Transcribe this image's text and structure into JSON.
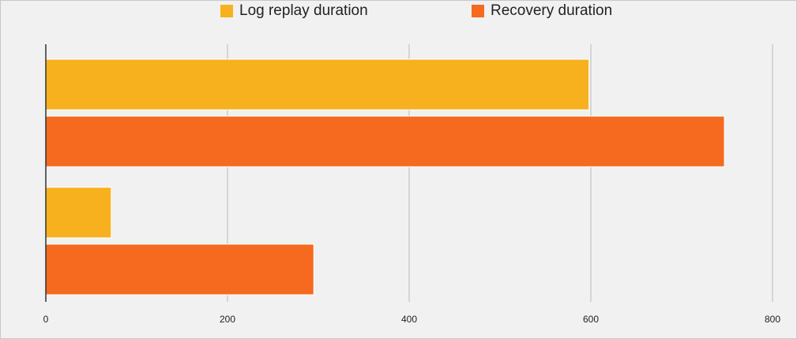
{
  "chart_data": {
    "type": "bar",
    "orientation": "horizontal",
    "categories": [
      "",
      ""
    ],
    "series": [
      {
        "name": "Log replay duration",
        "color": "#f7b11e",
        "values": [
          598,
          72
        ]
      },
      {
        "name": "Recovery duration",
        "color": "#f56a1f",
        "values": [
          747,
          295
        ]
      }
    ],
    "xlim": [
      0,
      800
    ],
    "xticks": [
      0,
      200,
      400,
      600,
      800
    ],
    "xtick_labels": [
      "0",
      "200",
      "400",
      "600",
      "800"
    ],
    "grid": true,
    "legend_position": "top-center",
    "title": "",
    "xlabel": "",
    "ylabel": ""
  }
}
